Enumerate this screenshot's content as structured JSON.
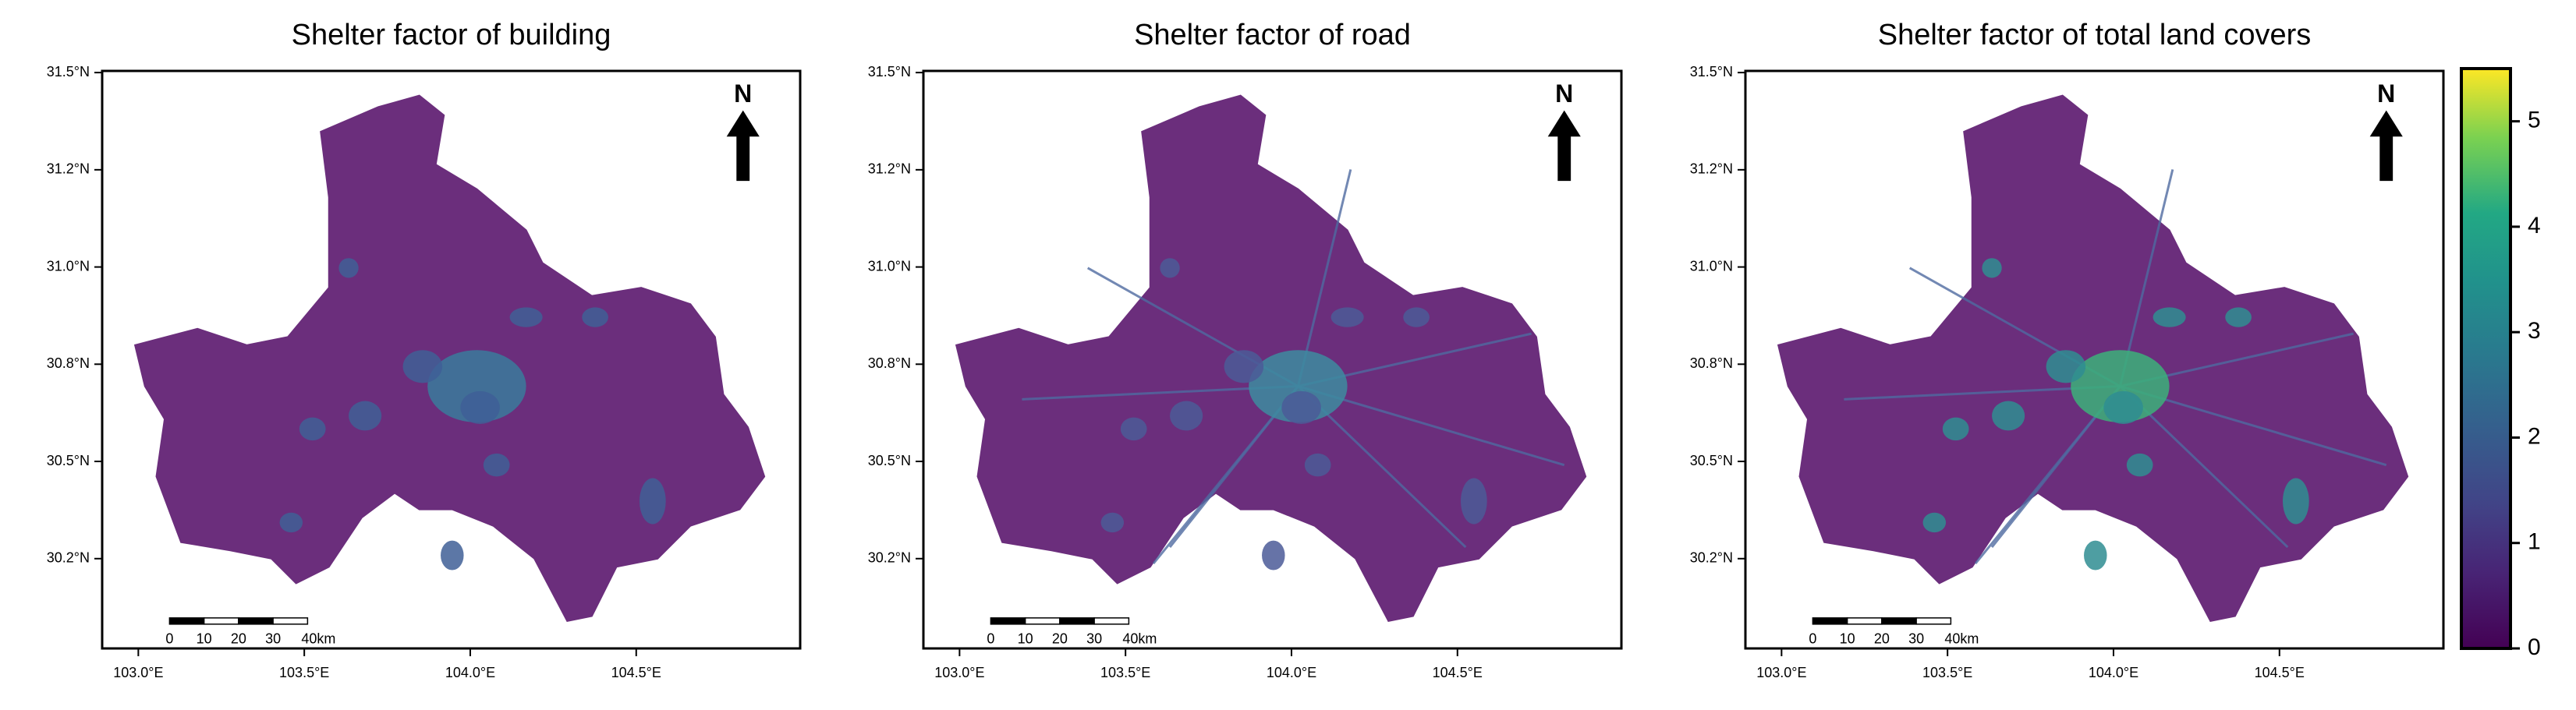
{
  "panels": [
    {
      "title": "Shelter factor of building"
    },
    {
      "title": "Shelter factor of road"
    },
    {
      "title": "Shelter factor of total land covers"
    }
  ],
  "axes": {
    "lat_labels": [
      "31.5°N",
      "31.2°N",
      "31.0°N",
      "30.8°N",
      "30.5°N",
      "30.2°N"
    ],
    "lon_labels": [
      "103.0°E",
      "103.5°E",
      "104.0°E",
      "104.5°E"
    ]
  },
  "north_label": "N",
  "scale_bar": {
    "labels": [
      "0",
      "10",
      "20",
      "30",
      "40km"
    ]
  },
  "colorbar": {
    "lim": [
      0,
      5.5
    ],
    "ticks": [
      0,
      1,
      2,
      3,
      4,
      5
    ]
  }
}
